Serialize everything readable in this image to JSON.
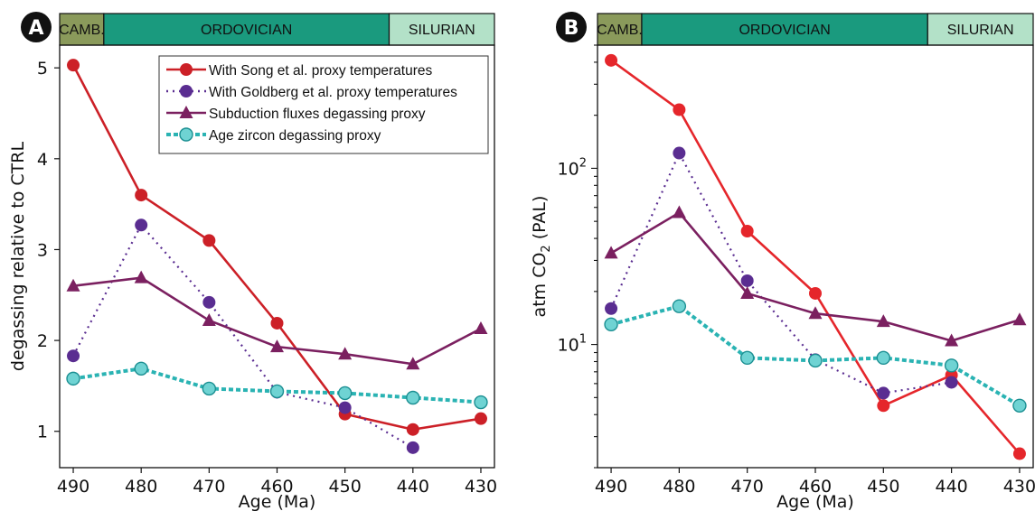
{
  "chart_data": [
    {
      "panel": "A",
      "type": "line",
      "xlabel": "Age (Ma)",
      "ylabel": "degassing relative to CTRL",
      "yscale": "linear",
      "xlim": [
        492,
        428
      ],
      "ylim": [
        0.6,
        5.25
      ],
      "xticks": [
        "490",
        "480",
        "470",
        "460",
        "450",
        "440",
        "430"
      ],
      "yticks": [
        "1",
        "2",
        "3",
        "4",
        "5"
      ],
      "periods": [
        {
          "name": "CAMB.",
          "from": 492,
          "to": 485.5,
          "color": "#8a9a5b"
        },
        {
          "name": "ORDOVICIAN",
          "from": 485.5,
          "to": 443.5,
          "color": "#1a9a7e"
        },
        {
          "name": "SILURIAN",
          "from": 443.5,
          "to": 428,
          "color": "#b3e1c8"
        }
      ],
      "legend_position": "top-right",
      "series": [
        {
          "name": "With Song et al. proxy temperatures",
          "style": "solid",
          "marker": "circle",
          "color": "#cc2027",
          "x": [
            490,
            480,
            470,
            460,
            450,
            440,
            430
          ],
          "y": [
            5.03,
            3.6,
            3.1,
            2.19,
            1.19,
            1.02,
            1.14
          ]
        },
        {
          "name": "With Goldberg et al. proxy temperatures",
          "style": "dotted",
          "marker": "circle",
          "color": "#5a2d91",
          "x": [
            490,
            480,
            470,
            460,
            450,
            440
          ],
          "y": [
            1.83,
            3.27,
            2.42,
            1.43,
            1.26,
            0.82
          ]
        },
        {
          "name": "Subduction fluxes degassing proxy",
          "style": "solid",
          "marker": "triangle",
          "color": "#7b2060",
          "x": [
            490,
            480,
            470,
            460,
            450,
            440,
            430
          ],
          "y": [
            2.6,
            2.69,
            2.22,
            1.93,
            1.85,
            1.74,
            2.13
          ]
        },
        {
          "name": "Age zircon degassing proxy",
          "style": "dashed",
          "marker": "circle-open",
          "color": "#2ab3b3",
          "x": [
            490,
            480,
            470,
            460,
            450,
            440,
            430
          ],
          "y": [
            1.58,
            1.69,
            1.47,
            1.44,
            1.42,
            1.37,
            1.32
          ]
        }
      ]
    },
    {
      "panel": "B",
      "type": "line",
      "xlabel": "Age (Ma)",
      "ylabel": "atm CO2 (PAL)",
      "yscale": "log",
      "xlim": [
        492,
        428
      ],
      "ylim": [
        2,
        500
      ],
      "xticks": [
        "490",
        "480",
        "470",
        "460",
        "450",
        "440",
        "430"
      ],
      "yticks": [
        "10^1",
        "10^2"
      ],
      "periods": [
        {
          "name": "CAMB.",
          "from": 492,
          "to": 485.5,
          "color": "#8a9a5b"
        },
        {
          "name": "ORDOVICIAN",
          "from": 485.5,
          "to": 443.5,
          "color": "#1a9a7e"
        },
        {
          "name": "SILURIAN",
          "from": 443.5,
          "to": 428,
          "color": "#b3e1c8"
        }
      ],
      "series": [
        {
          "name": "With Song et al. proxy temperatures",
          "style": "solid",
          "marker": "circle",
          "color": "#e5262b",
          "x": [
            490,
            480,
            470,
            460,
            450,
            440,
            430
          ],
          "y": [
            410,
            215,
            44,
            19.5,
            4.5,
            6.7,
            2.4
          ]
        },
        {
          "name": "With Goldberg et al. proxy temperatures",
          "style": "dotted",
          "marker": "circle",
          "color": "#5a2d91",
          "x": [
            490,
            480,
            470,
            460,
            450,
            440
          ],
          "y": [
            16,
            122,
            23,
            8.2,
            5.3,
            6.1
          ]
        },
        {
          "name": "Subduction fluxes degassing proxy",
          "style": "solid",
          "marker": "triangle",
          "color": "#7b2060",
          "x": [
            490,
            480,
            470,
            460,
            450,
            440,
            430
          ],
          "y": [
            33,
            56,
            19.5,
            15,
            13.5,
            10.5,
            13.8
          ]
        },
        {
          "name": "Age zircon degassing proxy",
          "style": "dashed",
          "marker": "circle-open",
          "color": "#2ab3b3",
          "x": [
            490,
            480,
            470,
            460,
            450,
            440,
            430
          ],
          "y": [
            13,
            16.5,
            8.4,
            8.1,
            8.4,
            7.6,
            4.5
          ]
        }
      ]
    }
  ]
}
